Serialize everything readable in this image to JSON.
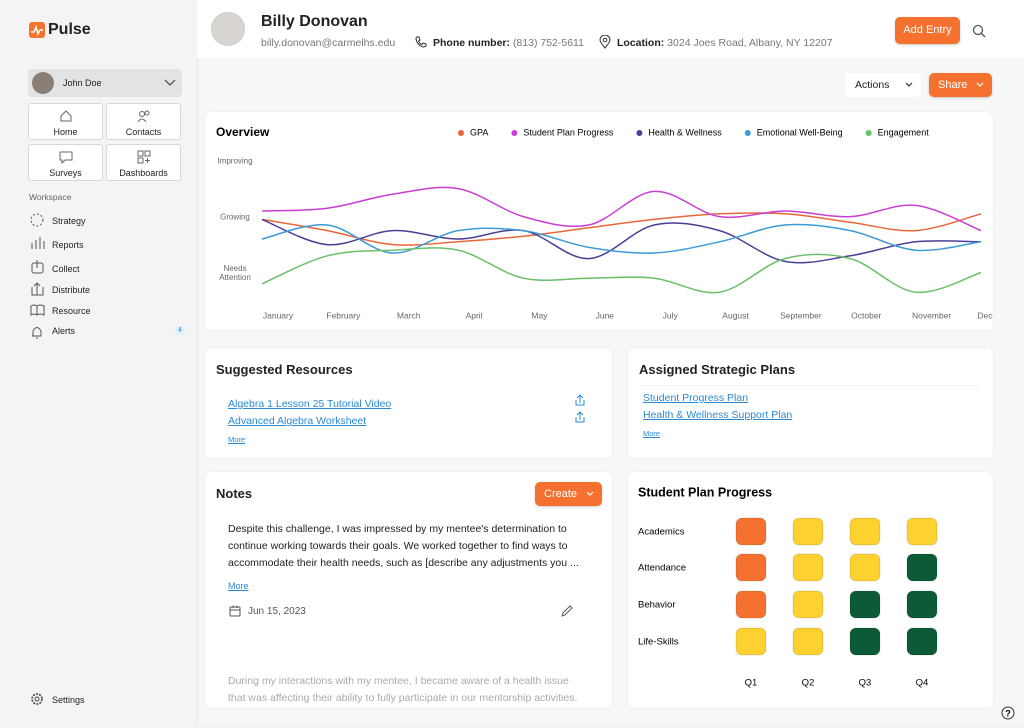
{
  "app": {
    "name": "Pulse"
  },
  "sidebar": {
    "user": "John Doe",
    "tiles": [
      "Home",
      "Contacts",
      "Surveys",
      "Dashboards"
    ],
    "section": "Workspace",
    "items": [
      {
        "label": "Strategy"
      },
      {
        "label": "Reports"
      },
      {
        "label": "Collect"
      },
      {
        "label": "Distribute"
      },
      {
        "label": "Resource"
      },
      {
        "label": "Alerts",
        "badge": 4
      }
    ],
    "settings": "Settings"
  },
  "header": {
    "name": "Billy Donovan",
    "email": "billy.donovan@carmelhs.edu",
    "phone_label": "Phone number:",
    "phone": "(813) 752-5611",
    "location_label": "Location:",
    "location": "3024 Joes Road, Albany, NY 12207",
    "add_entry": "Add Entry",
    "actions": "Actions",
    "share": "Share"
  },
  "chart_data": {
    "type": "line",
    "title": "Overview",
    "categories": [
      "January",
      "February",
      "March",
      "April",
      "May",
      "June",
      "July",
      "August",
      "September",
      "October",
      "November",
      "December"
    ],
    "series": [
      {
        "name": "GPA",
        "color": "#e8673a",
        "values": [
          0.95,
          0.75,
          0.5,
          0.55,
          0.65,
          0.8,
          0.95,
          1.05,
          1.05,
          0.9,
          0.75,
          1.05
        ]
      },
      {
        "name": "Student Plan Progress",
        "color": "#c93fd4",
        "values": [
          1.1,
          1.15,
          1.4,
          1.5,
          1.0,
          0.85,
          1.45,
          1.0,
          1.1,
          1.0,
          1.2,
          0.75
        ]
      },
      {
        "name": "Health & Wellness",
        "color": "#4b3e96",
        "values": [
          0.95,
          0.5,
          0.75,
          0.6,
          0.75,
          0.25,
          0.85,
          0.75,
          0.2,
          0.3,
          0.55,
          0.55
        ]
      },
      {
        "name": "Emotional Well-Being",
        "color": "#3b9bd6",
        "values": [
          0.6,
          0.85,
          0.35,
          0.75,
          0.75,
          0.45,
          0.35,
          0.55,
          0.85,
          0.75,
          0.4,
          0.55
        ]
      },
      {
        "name": "Engagement",
        "color": "#6abf69",
        "values": [
          -0.2,
          0.3,
          0.4,
          0.4,
          -0.1,
          -0.1,
          -0.1,
          -0.35,
          0.25,
          0.25,
          -0.35,
          0.0
        ]
      }
    ],
    "ylim": [
      -0.4,
      2.1
    ],
    "yticks": [
      {
        "value": 0,
        "label": "Needs Attention"
      },
      {
        "value": 1,
        "label": "Growing"
      },
      {
        "value": 2,
        "label": "Improving"
      }
    ],
    "grid": false,
    "legend": "top"
  },
  "resources": {
    "title": "Suggested Resources",
    "links": [
      "Algebra 1 Lesson 25 Tutorial Video",
      "Advanced Algebra Worksheet"
    ],
    "more": "More"
  },
  "plans": {
    "title": "Assigned Strategic Plans",
    "links": [
      "Student Progress Plan",
      "Health & Wellness Support Plan"
    ],
    "more": "More"
  },
  "notes": {
    "title": "Notes",
    "create": "Create",
    "entries": [
      {
        "text": "Despite this challenge, I was impressed by my mentee's determination to continue working towards their goals. We worked together to find ways to accommodate their health needs, such as [describe any adjustments you ...",
        "more": "More",
        "date": "Jun 15, 2023"
      },
      {
        "text": "During my interactions with my mentee, I became aware of a health issue that was affecting their ability to fully participate in our mentorship activities."
      }
    ]
  },
  "progress": {
    "title": "Student Plan Progress",
    "quarters": [
      "Q1",
      "Q2",
      "Q3",
      "Q4"
    ],
    "rows": [
      {
        "label": "Academics",
        "colors": [
          "#f4712f",
          "#fcd130",
          "#fcd130",
          "#fcd130"
        ]
      },
      {
        "label": "Attendance",
        "colors": [
          "#f4712f",
          "#fcd130",
          "#fcd130",
          "#0d5a36"
        ]
      },
      {
        "label": "Behavior",
        "colors": [
          "#f4712f",
          "#fcd130",
          "#0d5a36",
          "#0d5a36"
        ]
      },
      {
        "label": "Life-Skills",
        "colors": [
          "#fcd130",
          "#fcd130",
          "#0d5a36",
          "#0d5a36"
        ]
      }
    ]
  }
}
